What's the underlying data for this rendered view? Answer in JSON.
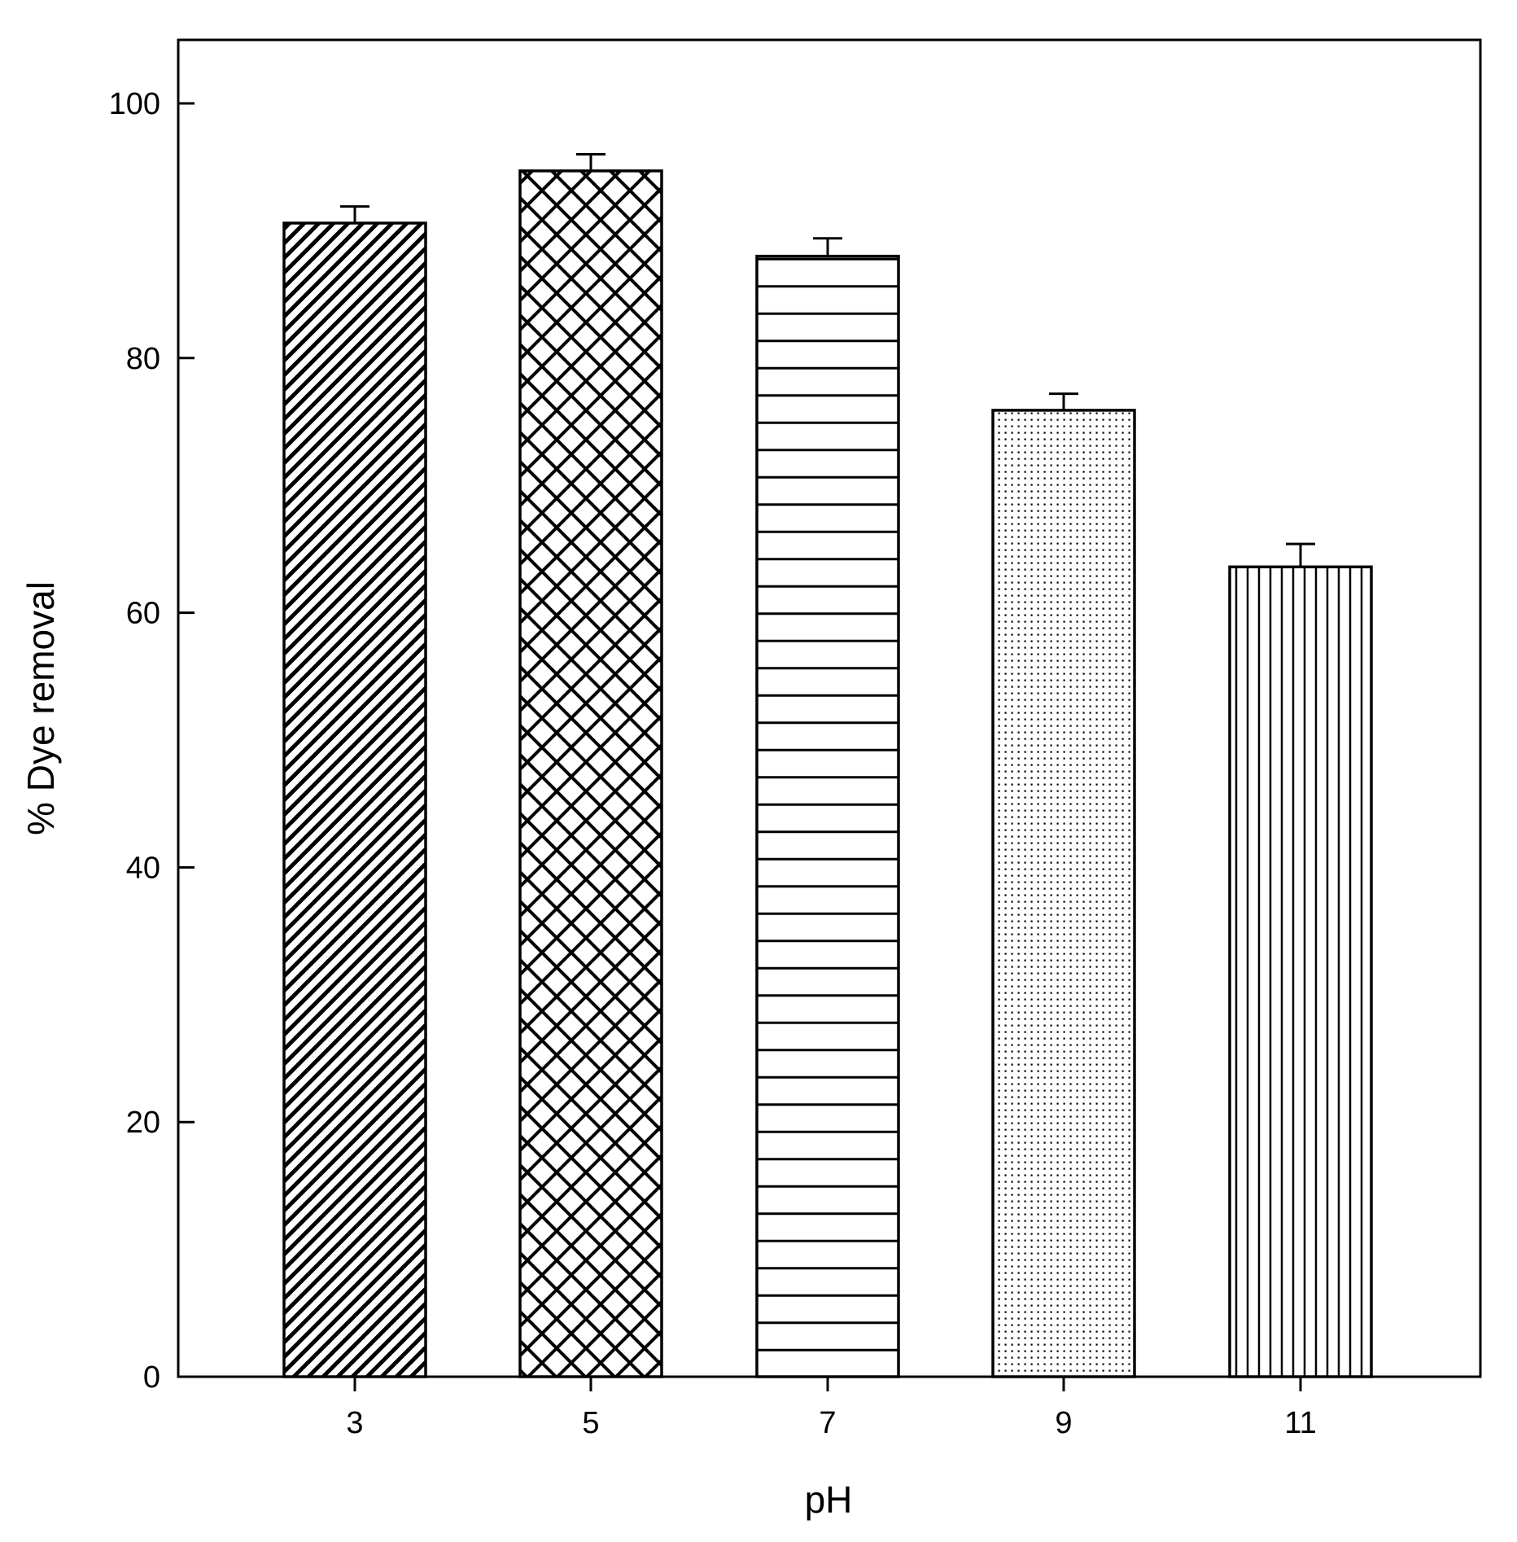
{
  "chart_data": {
    "type": "bar",
    "title": "",
    "xlabel": "pH",
    "ylabel": "% Dye removal",
    "categories": [
      "3",
      "5",
      "7",
      "9",
      "11"
    ],
    "values": [
      90.6,
      94.7,
      88.0,
      75.9,
      63.6
    ],
    "error_bars": [
      1.3,
      1.3,
      1.4,
      1.3,
      1.8
    ],
    "ylim": [
      0,
      105
    ],
    "yticks": [
      "0",
      "20",
      "40",
      "60",
      "80",
      "100"
    ],
    "grid": false,
    "legend": "none",
    "fill_patterns": [
      "diagonal-hatch",
      "cross-hatch",
      "horizontal-lines",
      "dots",
      "vertical-lines"
    ],
    "colors": {
      "stroke": "#000000",
      "fill": "#ffffff"
    }
  }
}
